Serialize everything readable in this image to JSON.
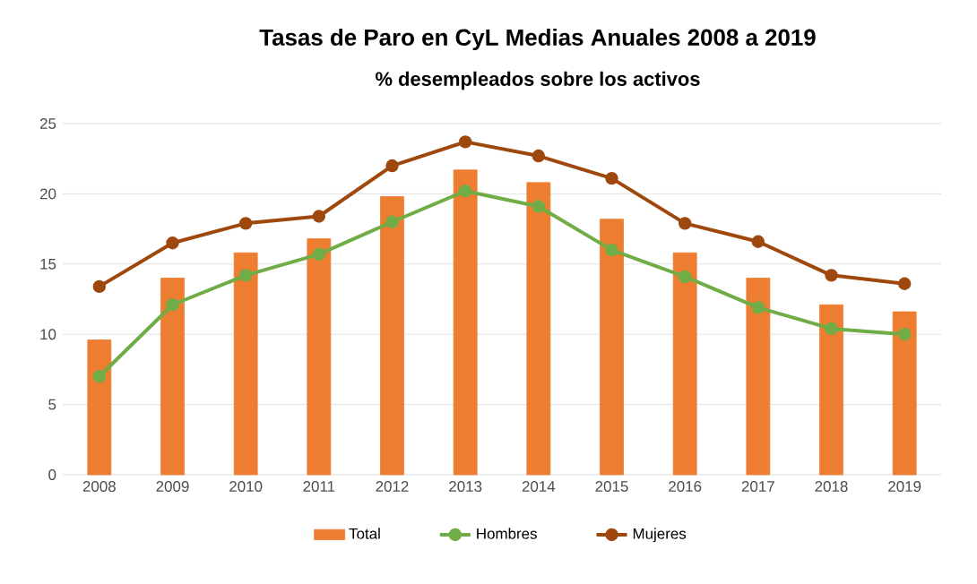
{
  "chart_data": {
    "type": "bar",
    "title": "Tasas de Paro en CyL Medias Anuales 2008 a 2019",
    "subtitle": "% desempleados sobre los activos",
    "categories": [
      "2008",
      "2009",
      "2010",
      "2011",
      "2012",
      "2013",
      "2014",
      "2015",
      "2016",
      "2017",
      "2018",
      "2019"
    ],
    "series": [
      {
        "name": "Total",
        "color": "#ed7d31",
        "values": [
          9.6,
          14.0,
          15.8,
          16.8,
          19.8,
          21.7,
          20.8,
          18.2,
          15.8,
          14.0,
          12.1,
          11.6
        ]
      },
      {
        "name": "Hombres",
        "type": "line",
        "color": "#70ad47",
        "marker": "circle",
        "values": [
          7.0,
          12.1,
          14.2,
          15.7,
          18.0,
          20.2,
          19.1,
          16.0,
          14.1,
          11.9,
          10.4,
          10.0
        ]
      },
      {
        "name": "Mujeres",
        "type": "line",
        "color": "#9e480e",
        "marker": "circle",
        "values": [
          13.4,
          16.5,
          17.9,
          18.4,
          22.0,
          23.7,
          22.7,
          21.1,
          17.9,
          16.6,
          14.2,
          13.6
        ]
      }
    ],
    "ylim": [
      0,
      25
    ],
    "yticks": [
      0,
      5,
      10,
      15,
      20,
      25
    ],
    "grid": "y",
    "legend": "bottom"
  }
}
